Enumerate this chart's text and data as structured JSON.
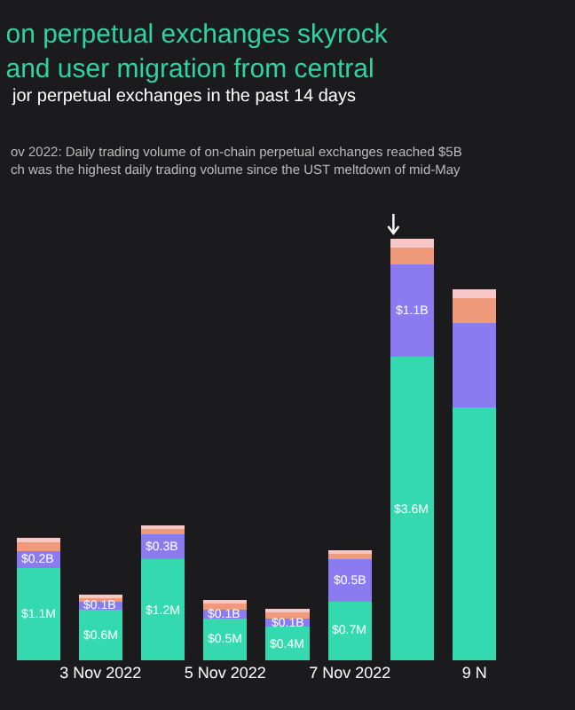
{
  "chart_data": {
    "type": "bar",
    "title": "on perpetual exchanges skyrock\nand user migration from central",
    "subtitle": "jor perpetual exchanges in the past 14 days",
    "annotations": [
      "ov 2022: Daily trading volume of on-chain perpetual exchanges reached $5B\nch was the highest daily trading volume since the UST meltdown of mid-May"
    ],
    "categories": [
      null,
      "3 Nov 2022",
      null,
      "5 Nov 2022",
      null,
      "7 Nov 2022",
      null,
      "9 N",
      null
    ],
    "stacked": true,
    "series": [
      {
        "color": "#34d9b0",
        "values": [
          1.1,
          0.6,
          1.2,
          0.5,
          0.4,
          0.7,
          3.6,
          3.0,
          null
        ],
        "value_labels": [
          "$1.1M",
          "$0.6M",
          "$1.2M",
          "$0.5M",
          "$0.4M",
          "$0.7M",
          "$3.6M",
          null,
          null
        ]
      },
      {
        "color": "#8a7cf0",
        "values": [
          0.2,
          0.1,
          0.3,
          0.1,
          0.1,
          0.5,
          1.1,
          1.0,
          null
        ],
        "value_labels": [
          "$0.2B",
          "$0.1B",
          "$0.3B",
          "$0.1B",
          "$0.1B",
          "$0.5B",
          "$1.1B",
          null,
          null
        ]
      },
      {
        "color": "#f09a7c",
        "values": [
          0.1,
          0.05,
          0.07,
          0.08,
          0.08,
          0.07,
          0.2,
          0.3,
          null
        ]
      },
      {
        "color": "#f7c6c6",
        "values": [
          0.05,
          0.02,
          0.03,
          0.03,
          0.03,
          0.03,
          0.1,
          0.1,
          null
        ]
      }
    ]
  }
}
